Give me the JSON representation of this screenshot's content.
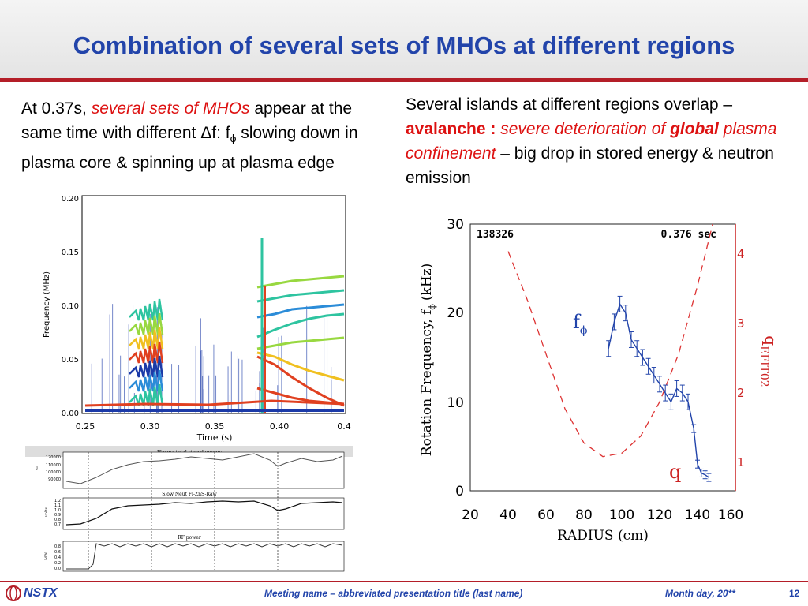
{
  "slide": {
    "title": "Combination of several sets of MHOs at different regions",
    "page_number": "12"
  },
  "left": {
    "t1": "At 0.37s,",
    "t2": "several sets of MHOs",
    "t3": "appear at the same time with different Δf:  f",
    "t4": "ϕ",
    "t5": "slowing down in plasma core & spinning up at plasma edge"
  },
  "right": {
    "t1": "Several islands at different regions overlap –",
    "t2": "avalanche :",
    "t3": "severe deterioration of",
    "t4": "global",
    "t5": "plasma confinement",
    "t6": "– big drop in stored energy & neutron emission"
  },
  "spectrogram": {
    "ylabel": "Frequency (MHz)",
    "xlabel": "Time (s)",
    "xticks": [
      "0.25",
      "0.30",
      "0.35",
      "0.40",
      "0.4"
    ],
    "yticks": [
      "0.20",
      "0.15",
      "0.10",
      "0.05",
      "0.00"
    ]
  },
  "strip1": {
    "title": "Plasma total stored energy",
    "ylabel": "J",
    "yticks": [
      "120000",
      "110000",
      "100000",
      "90000"
    ]
  },
  "strip2": {
    "title": "Slow Neut Fl-ZnS-Raw",
    "ylabel": "volts",
    "yticks": [
      "1.2",
      "1.1",
      "1.0",
      "0.9",
      "0.8",
      "0.7"
    ]
  },
  "strip3": {
    "title": "RF power",
    "ylabel": "MW",
    "yticks": [
      "0.8",
      "0.6",
      "0.4",
      "0.2",
      "0.0"
    ]
  },
  "profile": {
    "shot": "138326",
    "time": "0.376 sec",
    "ylabel": "Rotation Frequency, f",
    "ylabel_sub": "ϕ",
    "ylabel_unit": "(kHz)",
    "xlabel": "RADIUS (cm)",
    "rlabel": "q",
    "rlabel_sub": "EFIT02",
    "f_label": "f",
    "f_label_sub": "ϕ",
    "q_label": "q",
    "xticks": [
      "20",
      "40",
      "60",
      "80",
      "100",
      "120",
      "140",
      "160"
    ],
    "yticks": [
      "0",
      "10",
      "20",
      "30"
    ],
    "rticks": [
      "1",
      "2",
      "3",
      "4"
    ]
  },
  "chart_data": [
    {
      "type": "line",
      "title": "",
      "xlabel": "RADIUS (cm)",
      "ylabel": "Rotation Frequency, fϕ (kHz)",
      "xlim": [
        20,
        160
      ],
      "ylim": [
        0,
        30
      ],
      "series": [
        {
          "name": "fϕ",
          "x": [
            93,
            96,
            99,
            102,
            105,
            108,
            111,
            114,
            117,
            120,
            123,
            126,
            129,
            132,
            135,
            138,
            140,
            142,
            144,
            146
          ],
          "y": [
            16,
            19,
            21,
            20,
            17,
            16,
            15,
            14,
            13,
            12,
            11,
            10,
            11.5,
            11,
            10,
            7,
            3,
            2,
            1.8,
            1.5
          ]
        }
      ]
    },
    {
      "type": "line",
      "title": "",
      "ylabel": "qEFIT02",
      "ylim": [
        0.5,
        4.4
      ],
      "series": [
        {
          "name": "q",
          "x": [
            40,
            50,
            60,
            70,
            80,
            90,
            100,
            110,
            120,
            130,
            140,
            148
          ],
          "y": [
            4.0,
            3.3,
            2.5,
            1.7,
            1.2,
            1.0,
            1.05,
            1.3,
            1.8,
            2.5,
            3.5,
            4.4
          ]
        }
      ]
    }
  ],
  "footer": {
    "logo": "NSTX",
    "meeting": "Meeting name  – abbreviated presentation title (last name)",
    "date": "Month day, 20**"
  },
  "colors": {
    "title": "#2244aa",
    "accent_red": "#b41e28",
    "emphasis": "#dd1111"
  }
}
